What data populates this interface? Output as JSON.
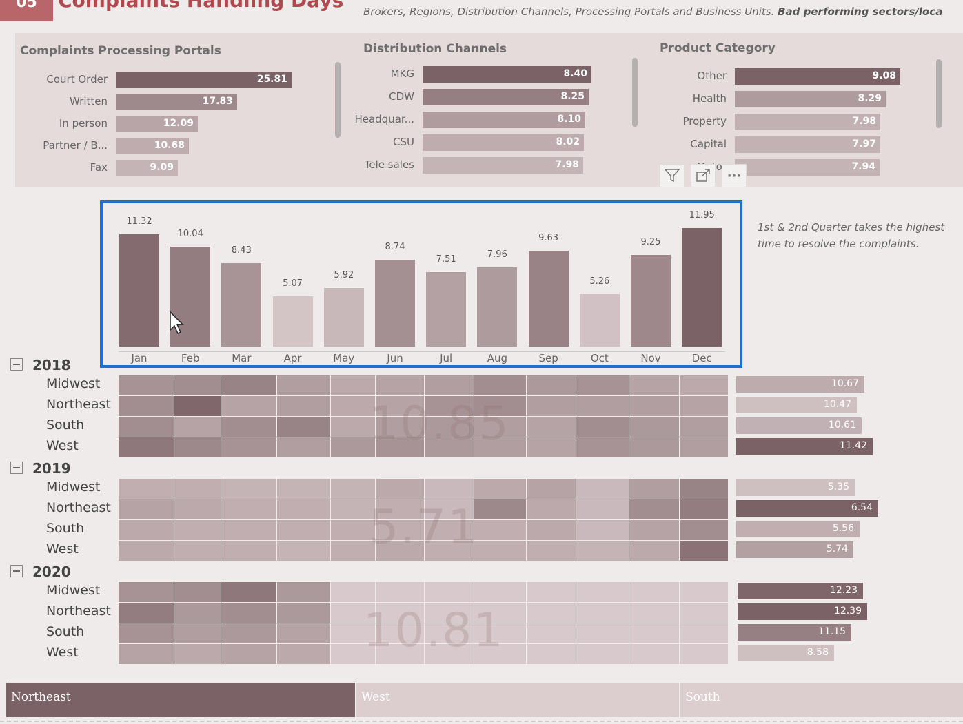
{
  "header": {
    "badge": "05",
    "title": "Complaints Handling Days",
    "description_prefix": "Brokers, Regions, Distribution Channels, Processing Portals and Business Units. ",
    "description_bold": "Bad performing sectors/loca"
  },
  "portals": {
    "title": "Complaints Processing Portals",
    "items": [
      {
        "label": "Court Order",
        "value": 25.81,
        "text": "25.81"
      },
      {
        "label": "Written",
        "value": 17.83,
        "text": "17.83"
      },
      {
        "label": "In person",
        "value": 12.09,
        "text": "12.09"
      },
      {
        "label": "Partner / B...",
        "value": 10.68,
        "text": "10.68"
      },
      {
        "label": "Fax",
        "value": 9.09,
        "text": "9.09"
      }
    ]
  },
  "channels": {
    "title": "Distribution Channels",
    "items": [
      {
        "label": "MKG",
        "value": 8.4,
        "text": "8.40"
      },
      {
        "label": "CDW",
        "value": 8.25,
        "text": "8.25"
      },
      {
        "label": "Headquar...",
        "value": 8.1,
        "text": "8.10"
      },
      {
        "label": "CSU",
        "value": 8.02,
        "text": "8.02"
      },
      {
        "label": "Tele sales",
        "value": 7.98,
        "text": "7.98"
      }
    ]
  },
  "product": {
    "title": "Product Category",
    "items": [
      {
        "label": "Other",
        "value": 9.08,
        "text": "9.08"
      },
      {
        "label": "Health",
        "value": 8.29,
        "text": "8.29"
      },
      {
        "label": "Property",
        "value": 7.98,
        "text": "7.98"
      },
      {
        "label": "Capital",
        "value": 7.97,
        "text": "7.97"
      },
      {
        "label": "Motor",
        "value": 7.94,
        "text": "7.94"
      }
    ]
  },
  "visual_icons": [
    "filter-icon",
    "focus-mode-icon",
    "more-options-icon"
  ],
  "visual_icon_glyphs": {
    "more": "···"
  },
  "chart_data": {
    "type": "bar",
    "categories": [
      "Jan",
      "Feb",
      "Mar",
      "Apr",
      "May",
      "Jun",
      "Jul",
      "Aug",
      "Sep",
      "Oct",
      "Nov",
      "Dec"
    ],
    "values": [
      11.32,
      10.04,
      8.43,
      5.07,
      5.92,
      8.74,
      7.51,
      7.96,
      9.63,
      5.26,
      9.25,
      11.95
    ],
    "value_labels": [
      "11.32",
      "10.04",
      "8.43",
      "5.07",
      "5.92",
      "8.74",
      "7.51",
      "7.96",
      "9.63",
      "5.26",
      "9.25",
      "11.95"
    ],
    "title": "",
    "xlabel": "",
    "ylabel": "",
    "ylim": [
      0,
      12.5
    ],
    "grid": false
  },
  "note": "1st & 2nd Quarter takes the highest time to resolve the complaints.",
  "matrix": {
    "years": [
      {
        "year": "2018",
        "big": "10.85",
        "regions": [
          "Midwest",
          "Northeast",
          "South",
          "West"
        ],
        "totals": [
          {
            "v": 10.67,
            "t": "10.67"
          },
          {
            "v": 10.47,
            "t": "10.47"
          },
          {
            "v": 10.61,
            "t": "10.61"
          },
          {
            "v": 11.42,
            "t": "11.42"
          }
        ]
      },
      {
        "year": "2019",
        "big": "5.71",
        "regions": [
          "Midwest",
          "Northeast",
          "South",
          "West"
        ],
        "totals": [
          {
            "v": 5.35,
            "t": "5.35"
          },
          {
            "v": 6.54,
            "t": "6.54"
          },
          {
            "v": 5.56,
            "t": "5.56"
          },
          {
            "v": 5.74,
            "t": "5.74"
          }
        ]
      },
      {
        "year": "2020",
        "big": "10.81",
        "regions": [
          "Midwest",
          "Northeast",
          "South",
          "West"
        ],
        "totals": [
          {
            "v": 12.23,
            "t": "12.23"
          },
          {
            "v": 12.39,
            "t": "12.39"
          },
          {
            "v": 11.15,
            "t": "11.15"
          },
          {
            "v": 8.58,
            "t": "8.58"
          }
        ]
      }
    ],
    "cell_intensity": [
      [
        [
          0.55,
          0.6,
          0.7,
          0.45,
          0.35,
          0.4,
          0.45,
          0.6,
          0.5,
          0.55,
          0.4,
          0.35
        ],
        [
          0.6,
          0.95,
          0.4,
          0.45,
          0.35,
          0.4,
          0.55,
          0.6,
          0.45,
          0.45,
          0.45,
          0.4
        ],
        [
          0.6,
          0.4,
          0.6,
          0.7,
          0.35,
          0.45,
          0.5,
          0.45,
          0.4,
          0.6,
          0.5,
          0.45
        ],
        [
          0.8,
          0.65,
          0.55,
          0.45,
          0.5,
          0.55,
          0.5,
          0.45,
          0.4,
          0.55,
          0.5,
          0.45
        ]
      ],
      [
        [
          0.3,
          0.3,
          0.25,
          0.25,
          0.25,
          0.35,
          0.2,
          0.35,
          0.4,
          0.2,
          0.45,
          0.7
        ],
        [
          0.4,
          0.35,
          0.3,
          0.3,
          0.25,
          0.3,
          0.2,
          0.65,
          0.35,
          0.2,
          0.6,
          0.75
        ],
        [
          0.35,
          0.3,
          0.3,
          0.3,
          0.3,
          0.3,
          0.3,
          0.3,
          0.35,
          0.2,
          0.4,
          0.6
        ],
        [
          0.35,
          0.3,
          0.3,
          0.25,
          0.3,
          0.35,
          0.3,
          0.3,
          0.3,
          0.25,
          0.35,
          0.85
        ]
      ],
      [
        [
          0.55,
          0.6,
          0.8,
          0.5
        ],
        [
          0.75,
          0.5,
          0.6,
          0.5
        ],
        [
          0.55,
          0.45,
          0.5,
          0.4
        ],
        [
          0.4,
          0.35,
          0.4,
          0.35
        ]
      ]
    ]
  },
  "slicer": {
    "items": [
      {
        "label": "Northeast",
        "selected": true
      },
      {
        "label": "West",
        "selected": false
      },
      {
        "label": "South",
        "selected": false
      }
    ]
  },
  "colors": {
    "dark": "#7b6266",
    "light": "#ddcfd1",
    "accent_frame": "#1f6fd1",
    "badge": "#b9666a",
    "title": "#b04a4f"
  }
}
